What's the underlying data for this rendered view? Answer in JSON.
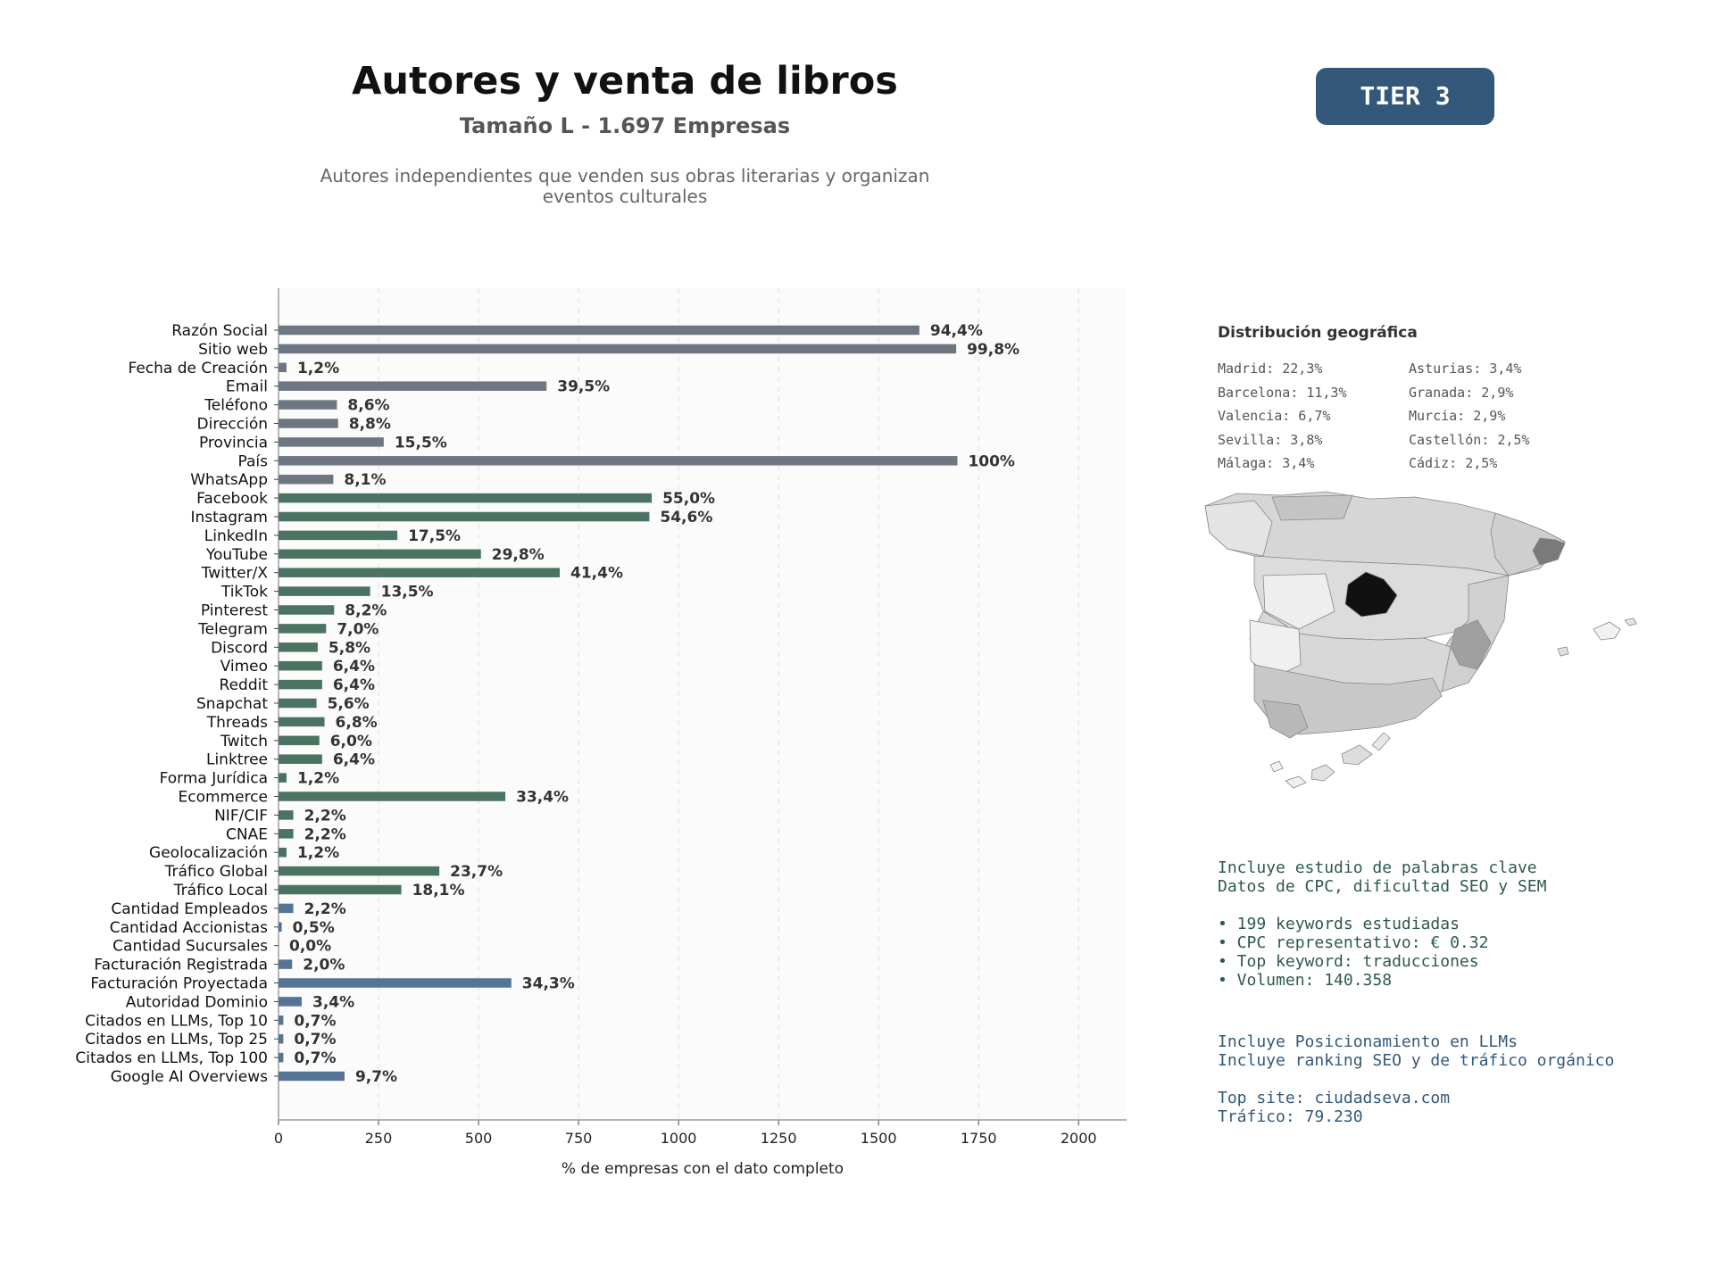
{
  "header": {
    "title": "Autores y venta de libros",
    "subtitle": "Tamaño L - 1.697 Empresas",
    "description_line1": "Autores independientes que venden sus obras literarias y organizan",
    "description_line2": "eventos culturales",
    "tier_badge": "TIER 3"
  },
  "colors": {
    "gray": "#6e7781",
    "green": "#4a7361",
    "blue": "#567594",
    "tier_bg": "#34587a"
  },
  "chart_data": {
    "type": "bar",
    "orientation": "horizontal",
    "xlabel": "% de empresas con el dato completo",
    "xlim": [
      0,
      2120
    ],
    "xticks": [
      0,
      250,
      500,
      750,
      1000,
      1250,
      1500,
      1750,
      2000
    ],
    "grid": "vertical dashed",
    "total": 1697,
    "bars": [
      {
        "label": "Razón Social",
        "value": 1602,
        "pct": "94,4%",
        "group": "gray"
      },
      {
        "label": "Sitio web",
        "value": 1694,
        "pct": "99,8%",
        "group": "gray"
      },
      {
        "label": "Fecha de Creación",
        "value": 20,
        "pct": "1,2%",
        "group": "gray"
      },
      {
        "label": "Email",
        "value": 670,
        "pct": "39,5%",
        "group": "gray"
      },
      {
        "label": "Teléfono",
        "value": 146,
        "pct": "8,6%",
        "group": "gray"
      },
      {
        "label": "Dirección",
        "value": 149,
        "pct": "8,8%",
        "group": "gray"
      },
      {
        "label": "Provincia",
        "value": 263,
        "pct": "15,5%",
        "group": "gray"
      },
      {
        "label": "País",
        "value": 1697,
        "pct": "100%",
        "group": "gray"
      },
      {
        "label": "WhatsApp",
        "value": 137,
        "pct": "8,1%",
        "group": "gray"
      },
      {
        "label": "Facebook",
        "value": 933,
        "pct": "55,0%",
        "group": "green"
      },
      {
        "label": "Instagram",
        "value": 927,
        "pct": "54,6%",
        "group": "green"
      },
      {
        "label": "LinkedIn",
        "value": 297,
        "pct": "17,5%",
        "group": "green"
      },
      {
        "label": "YouTube",
        "value": 506,
        "pct": "29,8%",
        "group": "green"
      },
      {
        "label": "Twitter/X",
        "value": 703,
        "pct": "41,4%",
        "group": "green"
      },
      {
        "label": "TikTok",
        "value": 229,
        "pct": "13,5%",
        "group": "green"
      },
      {
        "label": "Pinterest",
        "value": 139,
        "pct": "8,2%",
        "group": "green"
      },
      {
        "label": "Telegram",
        "value": 119,
        "pct": "7,0%",
        "group": "green"
      },
      {
        "label": "Discord",
        "value": 98,
        "pct": "5,8%",
        "group": "green"
      },
      {
        "label": "Vimeo",
        "value": 109,
        "pct": "6,4%",
        "group": "green"
      },
      {
        "label": "Reddit",
        "value": 109,
        "pct": "6,4%",
        "group": "green"
      },
      {
        "label": "Snapchat",
        "value": 95,
        "pct": "5,6%",
        "group": "green"
      },
      {
        "label": "Threads",
        "value": 115,
        "pct": "6,8%",
        "group": "green"
      },
      {
        "label": "Twitch",
        "value": 102,
        "pct": "6,0%",
        "group": "green"
      },
      {
        "label": "Linktree",
        "value": 109,
        "pct": "6,4%",
        "group": "green"
      },
      {
        "label": "Forma Jurídica",
        "value": 20,
        "pct": "1,2%",
        "group": "green"
      },
      {
        "label": "Ecommerce",
        "value": 567,
        "pct": "33,4%",
        "group": "green"
      },
      {
        "label": "NIF/CIF",
        "value": 37,
        "pct": "2,2%",
        "group": "green"
      },
      {
        "label": "CNAE",
        "value": 37,
        "pct": "2,2%",
        "group": "green"
      },
      {
        "label": "Geolocalización",
        "value": 20,
        "pct": "1,2%",
        "group": "green"
      },
      {
        "label": "Tráfico Global",
        "value": 402,
        "pct": "23,7%",
        "group": "green"
      },
      {
        "label": "Tráfico Local",
        "value": 307,
        "pct": "18,1%",
        "group": "green"
      },
      {
        "label": "Cantidad Empleados",
        "value": 37,
        "pct": "2,2%",
        "group": "blue"
      },
      {
        "label": "Cantidad Accionistas",
        "value": 8,
        "pct": "0,5%",
        "group": "blue"
      },
      {
        "label": "Cantidad Sucursales",
        "value": 0,
        "pct": "0,0%",
        "group": "blue"
      },
      {
        "label": "Facturación Registrada",
        "value": 34,
        "pct": "2,0%",
        "group": "blue"
      },
      {
        "label": "Facturación Proyectada",
        "value": 582,
        "pct": "34,3%",
        "group": "blue"
      },
      {
        "label": "Autoridad Dominio",
        "value": 58,
        "pct": "3,4%",
        "group": "blue"
      },
      {
        "label": "Citados en LLMs, Top 10",
        "value": 12,
        "pct": "0,7%",
        "group": "blue"
      },
      {
        "label": "Citados en LLMs, Top 25",
        "value": 12,
        "pct": "0,7%",
        "group": "blue"
      },
      {
        "label": "Citados en LLMs, Top 100",
        "value": 12,
        "pct": "0,7%",
        "group": "blue"
      },
      {
        "label": "Google AI Overviews",
        "value": 165,
        "pct": "9,7%",
        "group": "blue"
      }
    ]
  },
  "geo": {
    "title": "Distribución geográfica",
    "col1": [
      "Madrid: 22,3%",
      "Barcelona: 11,3%",
      "Valencia: 6,7%",
      "Sevilla: 3,8%",
      "Málaga: 3,4%"
    ],
    "col2": [
      "Asturias: 3,4%",
      "Granada: 2,9%",
      "Murcia: 2,9%",
      "Castellón: 2,5%",
      "Cádiz: 2,5%"
    ]
  },
  "keywords": {
    "line1": "Incluye estudio de palabras clave",
    "line2": "Datos de CPC, dificultad SEO y SEM",
    "bullet1": "• 199 keywords estudiadas",
    "bullet2": "• CPC representativo: € 0.32",
    "bullet3": "• Top keyword: traducciones",
    "bullet4": "• Volumen: 140.358"
  },
  "llm": {
    "line1": "Incluye Posicionamiento en LLMs",
    "line2": "Incluye ranking SEO y de tráfico orgánico",
    "top_site": "Top site: ciudadseva.com",
    "traffic": "Tráfico: 79.230"
  }
}
